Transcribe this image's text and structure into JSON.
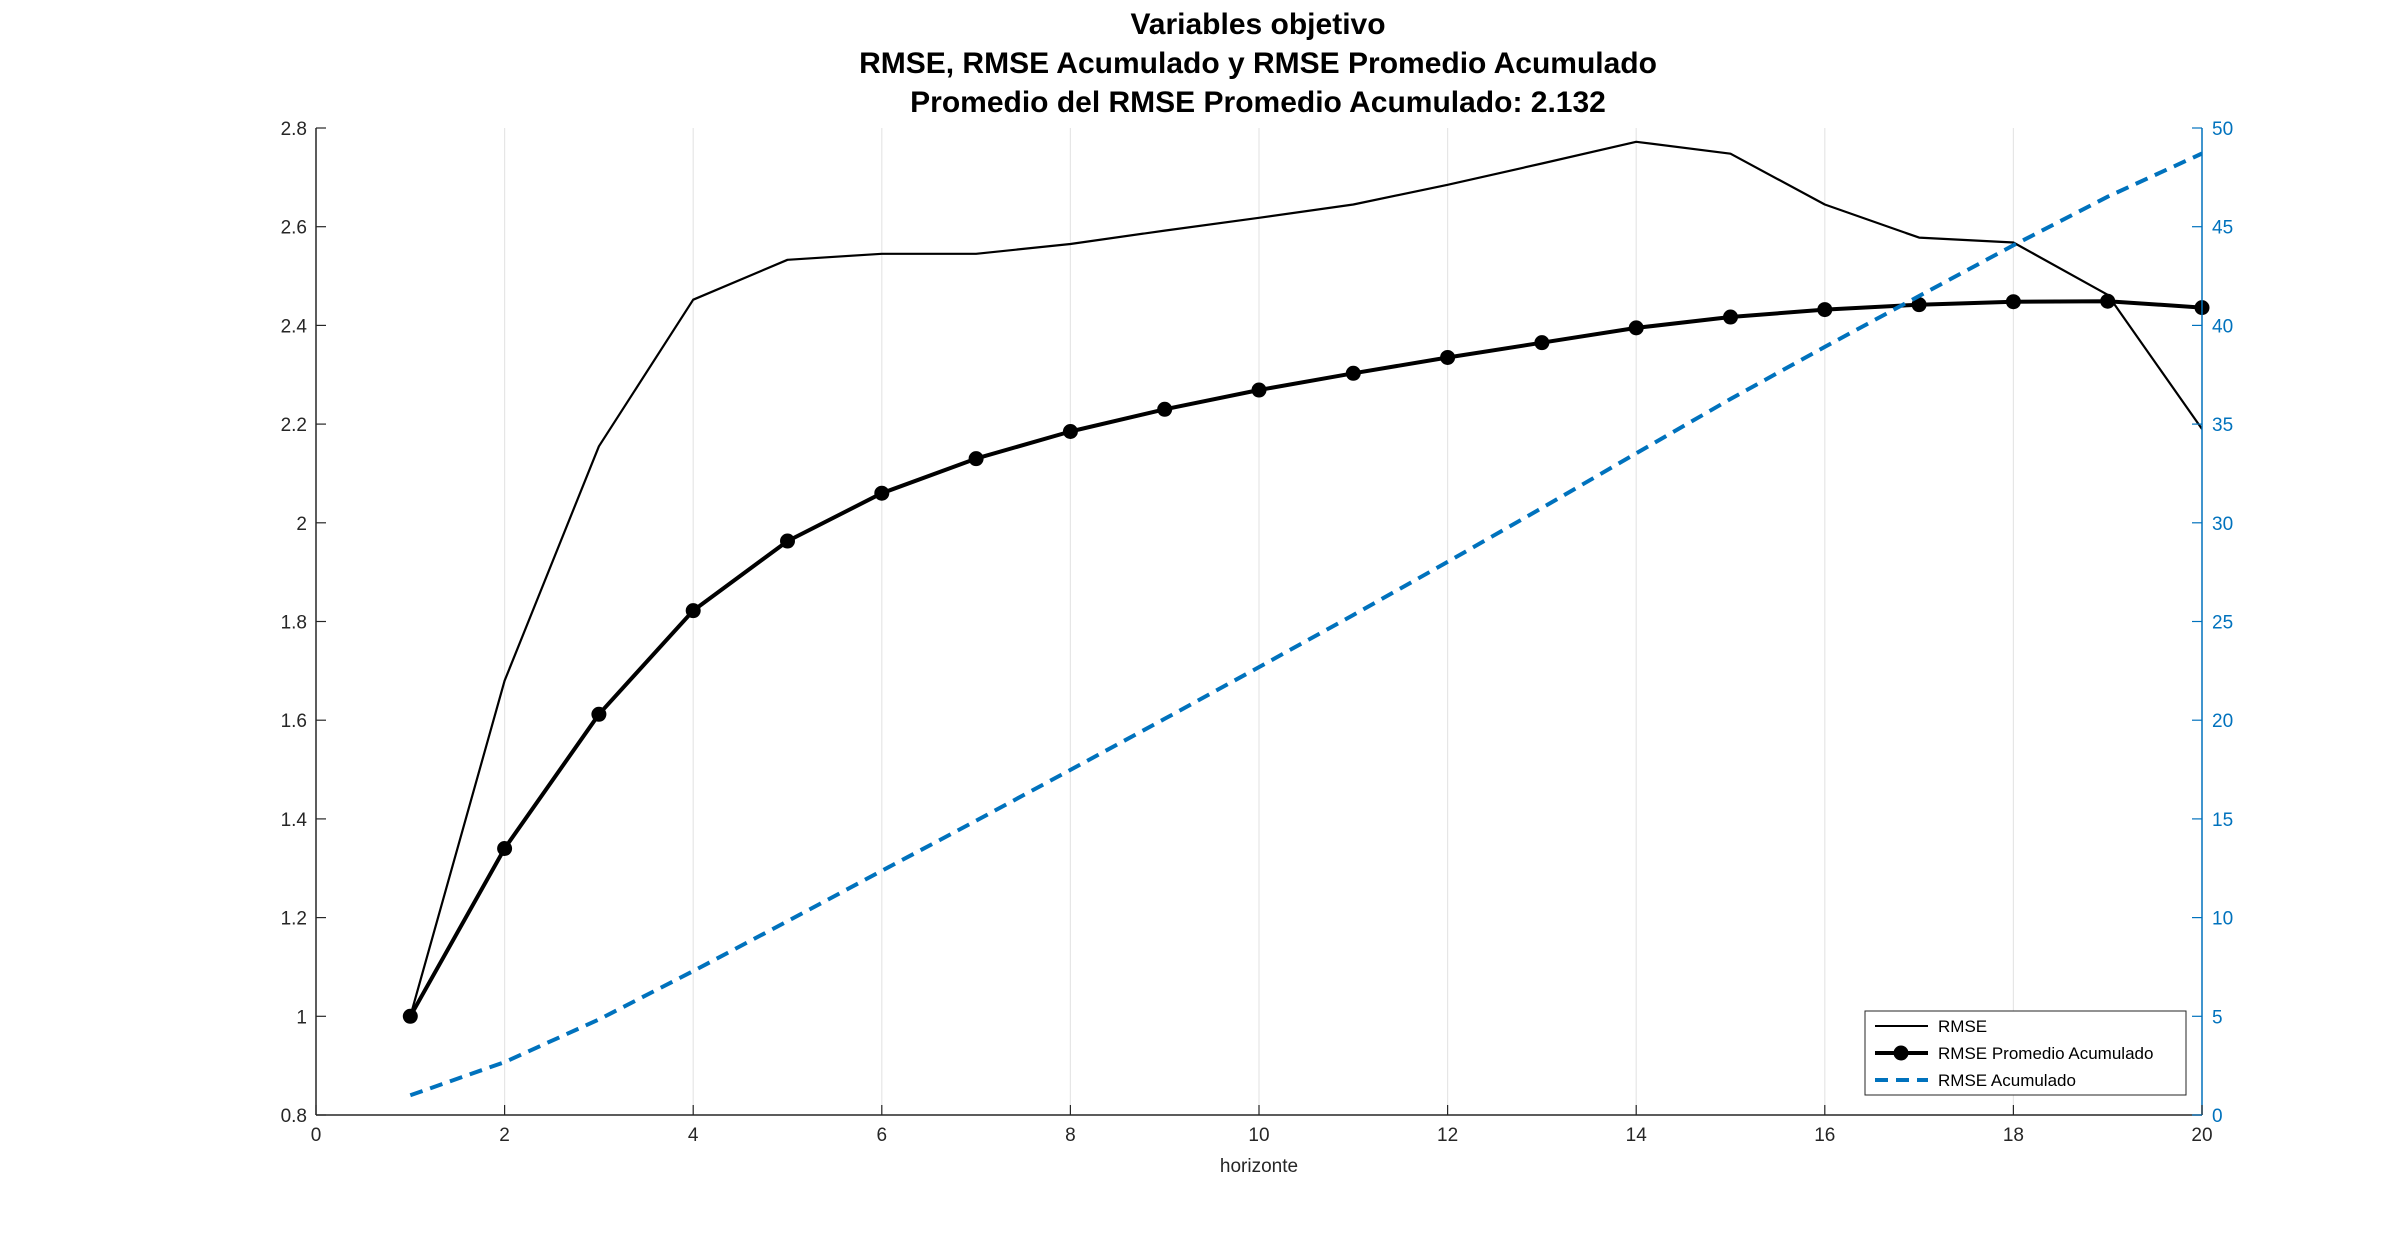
{
  "chart_data": {
    "type": "line",
    "title": [
      "Variables objetivo",
      "RMSE, RMSE Acumulado y RMSE Promedio Acumulado",
      "Promedio del RMSE Promedio Acumulado:  2.132"
    ],
    "xlabel": "horizonte",
    "ylabel": "",
    "xlim": [
      0,
      20
    ],
    "ylim_left": [
      0.8,
      2.8
    ],
    "ylim_right": [
      0,
      50
    ],
    "x_ticks": [
      "0",
      "2",
      "4",
      "6",
      "8",
      "10",
      "12",
      "14",
      "16",
      "18",
      "20"
    ],
    "y_ticks_left": [
      "0.8",
      "1",
      "1.2",
      "1.4",
      "1.6",
      "1.8",
      "2",
      "2.2",
      "2.4",
      "2.6",
      "2.8"
    ],
    "y_ticks_right": [
      "0",
      "5",
      "10",
      "15",
      "20",
      "25",
      "30",
      "35",
      "40",
      "45",
      "50"
    ],
    "grid": "vertical",
    "legend_position": "bottom-right",
    "x": [
      1,
      2,
      3,
      4,
      5,
      6,
      7,
      8,
      9,
      10,
      11,
      12,
      13,
      14,
      15,
      16,
      17,
      18,
      19,
      20
    ],
    "series": [
      {
        "name": "RMSE",
        "axis": "left",
        "color": "#000000",
        "style": "solid",
        "values": [
          1.0,
          1.68,
          2.155,
          2.452,
          2.533,
          2.545,
          2.545,
          2.565,
          2.592,
          2.618,
          2.645,
          2.685,
          2.728,
          2.772,
          2.748,
          2.645,
          2.578,
          2.568,
          2.462,
          2.19
        ]
      },
      {
        "name": "RMSE Promedio Acumulado",
        "axis": "left",
        "color": "#000000",
        "style": "solid-markers",
        "values": [
          1.0,
          1.34,
          1.612,
          1.822,
          1.963,
          2.06,
          2.13,
          2.185,
          2.23,
          2.269,
          2.303,
          2.335,
          2.365,
          2.395,
          2.417,
          2.432,
          2.442,
          2.448,
          2.449,
          2.436
        ]
      },
      {
        "name": "RMSE Acumulado",
        "axis": "right",
        "color": "#0072BD",
        "style": "dashed",
        "values": [
          1.0,
          2.68,
          4.84,
          7.29,
          9.82,
          12.37,
          14.91,
          17.48,
          20.07,
          22.69,
          25.33,
          28.02,
          30.75,
          33.52,
          36.27,
          38.91,
          41.49,
          44.06,
          46.52,
          48.71
        ]
      }
    ]
  }
}
